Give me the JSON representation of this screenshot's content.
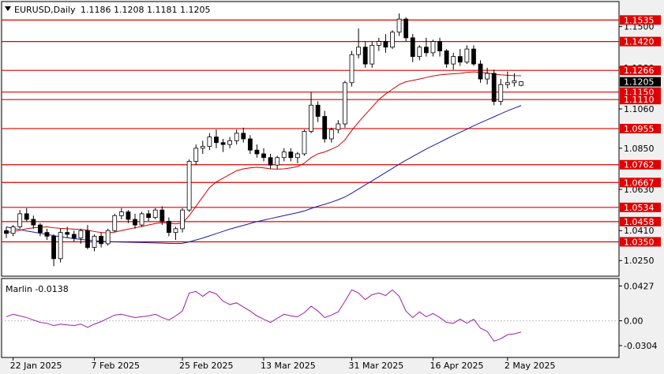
{
  "chart_data": [
    {
      "type": "candlestick",
      "symbol": "EURUSD",
      "timeframe": "Daily",
      "ohlc_readout": [
        "1.1186",
        "1.1208",
        "1.1181",
        "1.1205"
      ],
      "current_price_label": "1.1205",
      "ylim": [
        1.0175,
        1.1625
      ],
      "y_ticks": [
        "1.1500",
        "1.1280",
        "1.1060",
        "1.0850",
        "1.0630",
        "1.0410",
        "1.0250"
      ],
      "x_ticks": [
        "22 Jan 2025",
        "7 Feb 2025",
        "25 Feb 2025",
        "13 Mar 2025",
        "31 Mar 2025",
        "16 Apr 2025",
        "2 May 2025"
      ],
      "levels": [
        {
          "label": "1.1535",
          "value": 1.1535
        },
        {
          "label": "1.1420",
          "value": 1.142
        },
        {
          "label": "1.1266",
          "value": 1.1266
        },
        {
          "label": "1.1150",
          "value": 1.115
        },
        {
          "label": "1.1110",
          "value": 1.111
        },
        {
          "label": "1.0955",
          "value": 1.0955
        },
        {
          "label": "1.0762",
          "value": 1.0762
        },
        {
          "label": "1.0667",
          "value": 1.0667
        },
        {
          "label": "1.0534",
          "value": 1.0534
        },
        {
          "label": "1.0458",
          "value": 1.0458
        },
        {
          "label": "1.0350",
          "value": 1.035
        }
      ],
      "candles": [
        [
          1.041,
          1.043,
          1.037,
          1.0395
        ],
        [
          1.0395,
          1.044,
          1.038,
          1.043
        ],
        [
          1.043,
          1.052,
          1.042,
          1.05
        ],
        [
          1.05,
          1.053,
          1.046,
          1.047
        ],
        [
          1.047,
          1.049,
          1.042,
          1.044
        ],
        [
          1.044,
          1.045,
          1.038,
          1.04
        ],
        [
          1.04,
          1.042,
          1.036,
          1.038
        ],
        [
          1.038,
          1.039,
          1.022,
          1.026
        ],
        [
          1.026,
          1.042,
          1.024,
          1.04
        ],
        [
          1.04,
          1.043,
          1.037,
          1.039
        ],
        [
          1.039,
          1.041,
          1.035,
          1.037
        ],
        [
          1.037,
          1.042,
          1.034,
          1.041
        ],
        [
          1.041,
          1.044,
          1.031,
          1.032
        ],
        [
          1.032,
          1.039,
          1.03,
          1.038
        ],
        [
          1.038,
          1.04,
          1.032,
          1.034
        ],
        [
          1.034,
          1.042,
          1.033,
          1.041
        ],
        [
          1.041,
          1.05,
          1.04,
          1.049
        ],
        [
          1.049,
          1.053,
          1.047,
          1.051
        ],
        [
          1.051,
          1.052,
          1.045,
          1.047
        ],
        [
          1.047,
          1.05,
          1.042,
          1.044
        ],
        [
          1.044,
          1.051,
          1.043,
          1.05
        ],
        [
          1.05,
          1.052,
          1.046,
          1.048
        ],
        [
          1.048,
          1.053,
          1.047,
          1.052
        ],
        [
          1.052,
          1.054,
          1.044,
          1.046
        ],
        [
          1.046,
          1.048,
          1.038,
          1.04
        ],
        [
          1.04,
          1.043,
          1.036,
          1.042
        ],
        [
          1.042,
          1.053,
          1.04,
          1.052
        ],
        [
          1.052,
          1.079,
          1.051,
          1.078
        ],
        [
          1.078,
          1.087,
          1.076,
          1.085
        ],
        [
          1.085,
          1.089,
          1.082,
          1.086
        ],
        [
          1.086,
          1.093,
          1.084,
          1.091
        ],
        [
          1.091,
          1.095,
          1.085,
          1.088
        ],
        [
          1.088,
          1.09,
          1.083,
          1.087
        ],
        [
          1.087,
          1.091,
          1.085,
          1.089
        ],
        [
          1.089,
          1.095,
          1.087,
          1.093
        ],
        [
          1.093,
          1.096,
          1.088,
          1.09
        ],
        [
          1.09,
          1.092,
          1.082,
          1.084
        ],
        [
          1.084,
          1.087,
          1.08,
          1.082
        ],
        [
          1.082,
          1.085,
          1.078,
          1.08
        ],
        [
          1.08,
          1.082,
          1.074,
          1.076
        ],
        [
          1.076,
          1.081,
          1.074,
          1.08
        ],
        [
          1.08,
          1.085,
          1.078,
          1.083
        ],
        [
          1.083,
          1.085,
          1.078,
          1.08
        ],
        [
          1.08,
          1.083,
          1.077,
          1.082
        ],
        [
          1.082,
          1.095,
          1.081,
          1.094
        ],
        [
          1.094,
          1.115,
          1.093,
          1.108
        ],
        [
          1.108,
          1.11,
          1.099,
          1.102
        ],
        [
          1.102,
          1.105,
          1.088,
          1.09
        ],
        [
          1.09,
          1.096,
          1.088,
          1.095
        ],
        [
          1.095,
          1.1,
          1.093,
          1.098
        ],
        [
          1.098,
          1.121,
          1.096,
          1.12
        ],
        [
          1.12,
          1.137,
          1.118,
          1.135
        ],
        [
          1.135,
          1.149,
          1.133,
          1.139
        ],
        [
          1.139,
          1.142,
          1.128,
          1.13
        ],
        [
          1.13,
          1.142,
          1.128,
          1.14
        ],
        [
          1.14,
          1.144,
          1.137,
          1.142
        ],
        [
          1.142,
          1.146,
          1.136,
          1.139
        ],
        [
          1.139,
          1.148,
          1.138,
          1.147
        ],
        [
          1.147,
          1.157,
          1.145,
          1.154
        ],
        [
          1.154,
          1.155,
          1.142,
          1.144
        ],
        [
          1.144,
          1.146,
          1.131,
          1.134
        ],
        [
          1.134,
          1.14,
          1.132,
          1.139
        ],
        [
          1.139,
          1.144,
          1.134,
          1.136
        ],
        [
          1.136,
          1.143,
          1.134,
          1.142
        ],
        [
          1.142,
          1.144,
          1.134,
          1.137
        ],
        [
          1.137,
          1.138,
          1.128,
          1.13
        ],
        [
          1.13,
          1.136,
          1.127,
          1.134
        ],
        [
          1.134,
          1.138,
          1.129,
          1.131
        ],
        [
          1.131,
          1.14,
          1.13,
          1.138
        ],
        [
          1.138,
          1.14,
          1.129,
          1.13
        ],
        [
          1.13,
          1.132,
          1.12,
          1.122
        ],
        [
          1.122,
          1.128,
          1.119,
          1.125
        ],
        [
          1.125,
          1.127,
          1.108,
          1.11
        ],
        [
          1.11,
          1.122,
          1.108,
          1.119
        ],
        [
          1.119,
          1.126,
          1.117,
          1.12
        ],
        [
          1.12,
          1.125,
          1.118,
          1.121
        ],
        [
          1.1186,
          1.1208,
          1.1181,
          1.1205
        ]
      ],
      "ma_red": [
        1.04,
        1.0405,
        1.0412,
        1.042,
        1.0425,
        1.0428,
        1.043,
        1.0425,
        1.0422,
        1.042,
        1.0418,
        1.0416,
        1.0412,
        1.0405,
        1.04,
        1.0398,
        1.0402,
        1.041,
        1.0418,
        1.0425,
        1.0432,
        1.044,
        1.0448,
        1.0452,
        1.045,
        1.0446,
        1.045,
        1.049,
        1.054,
        1.059,
        1.064,
        1.067,
        1.069,
        1.071,
        1.073,
        1.074,
        1.0745,
        1.0748,
        1.0745,
        1.074,
        1.0738,
        1.074,
        1.0745,
        1.0752,
        1.077,
        1.08,
        1.082,
        1.083,
        1.0845,
        1.0862,
        1.0895,
        1.0945,
        1.099,
        1.103,
        1.107,
        1.111,
        1.114,
        1.1165,
        1.119,
        1.1205,
        1.1212,
        1.122,
        1.1228,
        1.1236,
        1.1242,
        1.1245,
        1.1248,
        1.125,
        1.1255,
        1.1258,
        1.1255,
        1.1252,
        1.1246,
        1.1242,
        1.124,
        1.1238,
        1.1237
      ],
      "ma_blue": [
        1.043,
        1.0422,
        1.0415,
        1.0408,
        1.0402,
        1.0396,
        1.039,
        1.0383,
        1.0377,
        1.0372,
        1.0367,
        1.0363,
        1.0359,
        1.0356,
        1.0353,
        1.0351,
        1.035,
        1.0349,
        1.0348,
        1.0347,
        1.0346,
        1.0345,
        1.0344,
        1.0343,
        1.0342,
        1.0341,
        1.0342,
        1.035,
        1.036,
        1.037,
        1.0382,
        1.0394,
        1.0406,
        1.0418,
        1.0428,
        1.0438,
        1.0448,
        1.0458,
        1.0466,
        1.0474,
        1.0482,
        1.049,
        1.0498,
        1.0506,
        1.0515,
        1.0528,
        1.054,
        1.055,
        1.0562,
        1.0575,
        1.059,
        1.061,
        1.0632,
        1.0654,
        1.0676,
        1.0698,
        1.072,
        1.0742,
        1.0765,
        1.0786,
        1.0806,
        1.0826,
        1.0846,
        1.0864,
        1.0882,
        1.09,
        1.0918,
        1.0935,
        1.0952,
        1.097,
        1.0986,
        1.1002,
        1.1018,
        1.1034,
        1.105,
        1.1064,
        1.1078
      ]
    },
    {
      "type": "line",
      "indicator_label": "Marlin -0.0138",
      "ylim": [
        -0.042,
        0.047
      ],
      "y_ticks": [
        {
          "label": "0.0427",
          "value": 0.0427
        },
        {
          "label": "0.00",
          "value": 0.0
        },
        {
          "label": "-0.0304",
          "value": -0.0304
        }
      ],
      "values": [
        0.005,
        0.008,
        0.006,
        0.004,
        0.001,
        -0.002,
        -0.003,
        -0.006,
        -0.004,
        -0.005,
        -0.006,
        -0.004,
        -0.008,
        -0.004,
        -0.001,
        0.003,
        0.007,
        0.008,
        0.006,
        0.004,
        0.005,
        0.006,
        0.008,
        0.004,
        0.001,
        0.006,
        0.012,
        0.034,
        0.036,
        0.03,
        0.036,
        0.033,
        0.024,
        0.02,
        0.022,
        0.017,
        0.012,
        0.006,
        0.002,
        -0.002,
        0.003,
        0.008,
        0.006,
        0.005,
        0.01,
        0.018,
        0.012,
        0.004,
        0.007,
        0.011,
        0.024,
        0.038,
        0.034,
        0.026,
        0.032,
        0.034,
        0.031,
        0.038,
        0.03,
        0.012,
        0.004,
        0.011,
        0.005,
        0.009,
        0.004,
        -0.002,
        -0.003,
        0.002,
        -0.003,
        0.002,
        -0.009,
        -0.013,
        -0.025,
        -0.022,
        -0.017,
        -0.016,
        -0.0138
      ]
    }
  ]
}
